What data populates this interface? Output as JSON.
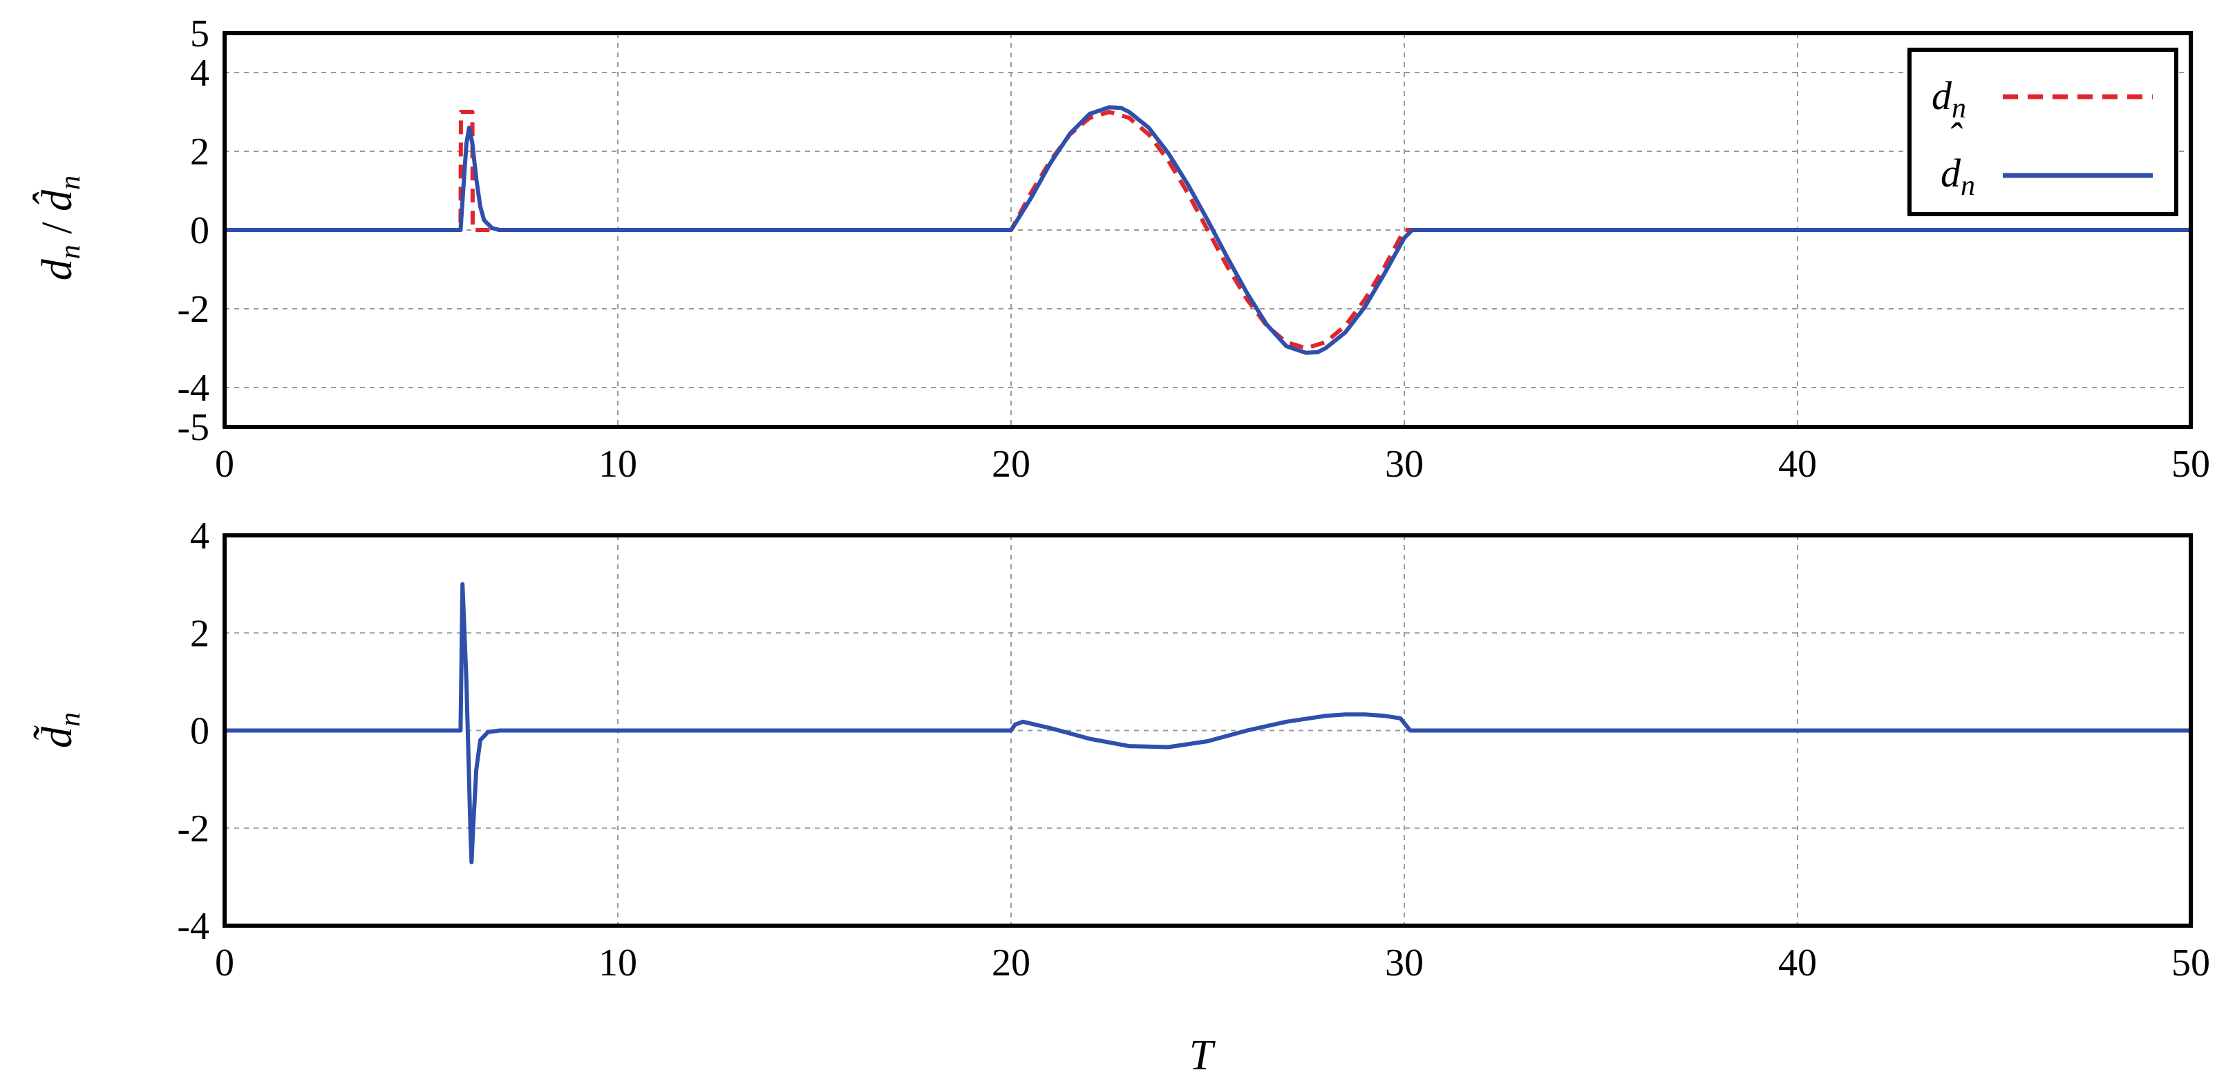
{
  "chart_data": [
    {
      "type": "line",
      "ylabel": "d_n / d̂_n",
      "xlim": [
        0,
        50
      ],
      "ylim": [
        -5,
        5
      ],
      "x_ticks": [
        "0",
        "10",
        "20",
        "30",
        "40",
        "50"
      ],
      "y_ticks": [
        "5",
        "4",
        "2",
        "0",
        "-2",
        "-4",
        "-5"
      ],
      "grid": true,
      "legend": "top-right",
      "legend_labels": [
        "d_n",
        "d̂_n"
      ],
      "series": [
        {
          "name": "d_n",
          "style": "dashed",
          "color": "#e0262c",
          "x": [
            0,
            6.0,
            6.01,
            6.3,
            6.31,
            20,
            20.5,
            21,
            21.5,
            22,
            22.5,
            23,
            23.5,
            24,
            24.5,
            25,
            25.5,
            26,
            26.5,
            27,
            27.5,
            28,
            28.5,
            29,
            29.5,
            30,
            50
          ],
          "y": [
            0,
            0,
            3.0,
            3.0,
            0,
            0,
            0.93,
            1.76,
            2.43,
            2.85,
            3.0,
            2.85,
            2.43,
            1.76,
            0.93,
            0,
            -0.93,
            -1.76,
            -2.43,
            -2.85,
            -3.0,
            -2.85,
            -2.43,
            -1.76,
            -0.93,
            0,
            0
          ]
        },
        {
          "name": "d̂_n",
          "style": "solid",
          "color": "#2f4faa",
          "x": [
            0,
            6.0,
            6.08,
            6.15,
            6.22,
            6.3,
            6.4,
            6.5,
            6.6,
            6.8,
            7.0,
            20,
            20.5,
            21,
            21.5,
            22,
            22.5,
            22.8,
            23,
            23.5,
            24,
            24.5,
            25,
            25.5,
            26,
            26.5,
            27,
            27.5,
            27.8,
            28,
            28.5,
            29,
            29.5,
            30,
            30.2,
            50
          ],
          "y": [
            0,
            0,
            1.2,
            2.2,
            2.6,
            2.2,
            1.3,
            0.6,
            0.25,
            0.05,
            0,
            0,
            0.8,
            1.7,
            2.45,
            2.95,
            3.12,
            3.1,
            3.0,
            2.6,
            1.95,
            1.15,
            0.25,
            -0.7,
            -1.6,
            -2.4,
            -2.95,
            -3.12,
            -3.1,
            -3.0,
            -2.6,
            -1.95,
            -1.1,
            -0.2,
            0,
            0
          ]
        }
      ]
    },
    {
      "type": "line",
      "xlabel": "T",
      "ylabel": "d̃_n",
      "xlim": [
        0,
        50
      ],
      "ylim": [
        -4,
        4
      ],
      "x_ticks": [
        "0",
        "10",
        "20",
        "30",
        "40",
        "50"
      ],
      "y_ticks": [
        "4",
        "2",
        "0",
        "-2",
        "-4"
      ],
      "grid": true,
      "series": [
        {
          "name": "d̃_n",
          "style": "solid",
          "color": "#2f4faa",
          "x": [
            0,
            6.0,
            6.05,
            6.1,
            6.15,
            6.2,
            6.25,
            6.28,
            6.32,
            6.4,
            6.5,
            6.7,
            7.0,
            20,
            20.1,
            20.3,
            21,
            22,
            23,
            24,
            25,
            26,
            27,
            28,
            28.5,
            29,
            29.5,
            29.9,
            30.0,
            30.15,
            50
          ],
          "y": [
            0,
            0,
            3.0,
            2.0,
            1.0,
            -0.5,
            -2.0,
            -2.7,
            -2.0,
            -0.8,
            -0.2,
            -0.03,
            0,
            0,
            0.12,
            0.18,
            0.05,
            -0.17,
            -0.32,
            -0.34,
            -0.22,
            0.0,
            0.18,
            0.3,
            0.33,
            0.33,
            0.3,
            0.25,
            0.15,
            0,
            0
          ]
        }
      ]
    }
  ]
}
